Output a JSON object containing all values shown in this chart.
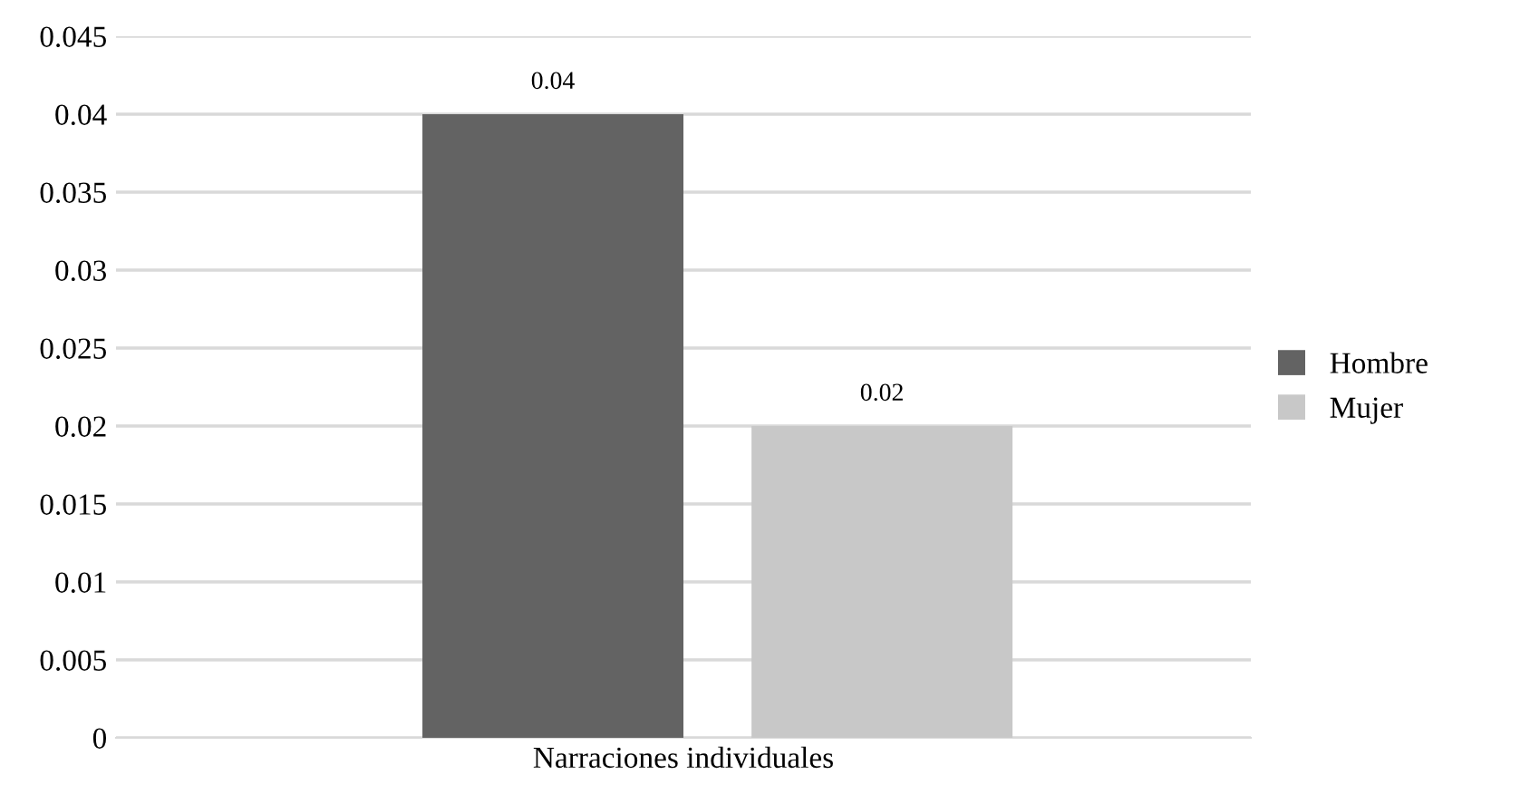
{
  "chart_data": {
    "type": "bar",
    "categories": [
      "Narraciones individuales"
    ],
    "series": [
      {
        "name": "Hombre",
        "color": "#636363",
        "values": [
          0.04
        ]
      },
      {
        "name": "Mujer",
        "color": "#c8c8c8",
        "values": [
          0.02
        ]
      }
    ],
    "ylim": [
      0,
      0.045
    ],
    "yticks": [
      0,
      0.005,
      0.01,
      0.015,
      0.02,
      0.025,
      0.03,
      0.035,
      0.04,
      0.045
    ],
    "grid": "y",
    "legend": "right",
    "data_labels": true
  }
}
